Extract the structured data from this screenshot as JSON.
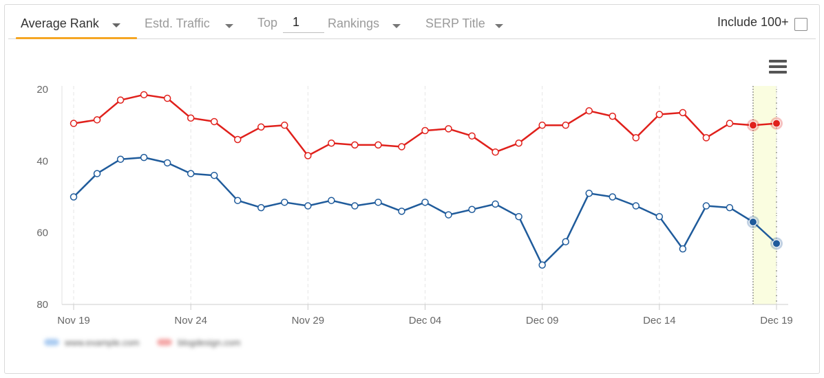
{
  "toolbar": {
    "average_rank_label": "Average Rank",
    "traffic_label": "Estd. Traffic",
    "top_label": "Top",
    "top_value": "1",
    "rankings_label": "Rankings",
    "serp_title_label": "SERP Title",
    "include_label": "Include 100+",
    "accent_color": "#f5a623"
  },
  "chart_data": {
    "type": "line",
    "x": [
      "Nov 19",
      "Nov 20",
      "Nov 21",
      "Nov 22",
      "Nov 23",
      "Nov 24",
      "Nov 25",
      "Nov 26",
      "Nov 27",
      "Nov 28",
      "Nov 29",
      "Nov 30",
      "Dec 01",
      "Dec 02",
      "Dec 03",
      "Dec 04",
      "Dec 05",
      "Dec 06",
      "Dec 07",
      "Dec 08",
      "Dec 09",
      "Dec 10",
      "Dec 11",
      "Dec 12",
      "Dec 13",
      "Dec 14",
      "Dec 15",
      "Dec 16",
      "Dec 17",
      "Dec 18",
      "Dec 19"
    ],
    "tick_labels": [
      "Nov 19",
      "Nov 24",
      "Nov 29",
      "Dec 04",
      "Dec 09",
      "Dec 14",
      "Dec 19"
    ],
    "y_ticks": [
      "20",
      "40",
      "60",
      "80"
    ],
    "ylim": [
      20,
      80
    ],
    "y_reversed": true,
    "grid": "vertical dashed at tick dates",
    "highlight_range": [
      "Dec 18",
      "Dec 19"
    ],
    "highlight_color": "#fafde0",
    "series": [
      {
        "color": "#e0201b",
        "values": [
          29.5,
          28.5,
          23,
          21.5,
          22.5,
          28,
          29,
          34,
          30.5,
          30,
          38.5,
          35,
          35.5,
          35.5,
          36,
          31.5,
          31,
          33,
          37.5,
          35,
          30,
          30,
          26,
          27.5,
          33.5,
          27,
          26.5,
          33.5,
          29.5,
          30,
          29.5
        ]
      },
      {
        "color": "#1f5b9b",
        "values": [
          50,
          43.5,
          39.5,
          39,
          40.5,
          43.5,
          44,
          51,
          53,
          51.5,
          52.5,
          51,
          52.5,
          51.5,
          54,
          51.5,
          55,
          53.5,
          52,
          55.5,
          69,
          62.5,
          49,
          50,
          52.5,
          55.5,
          64.5,
          52.5,
          53,
          57,
          63
        ]
      }
    ]
  },
  "legend": [
    {
      "label": "www.example.com",
      "color": "#aacbf1"
    },
    {
      "label": "blogdesign.com",
      "color": "#f4a7a7"
    }
  ]
}
